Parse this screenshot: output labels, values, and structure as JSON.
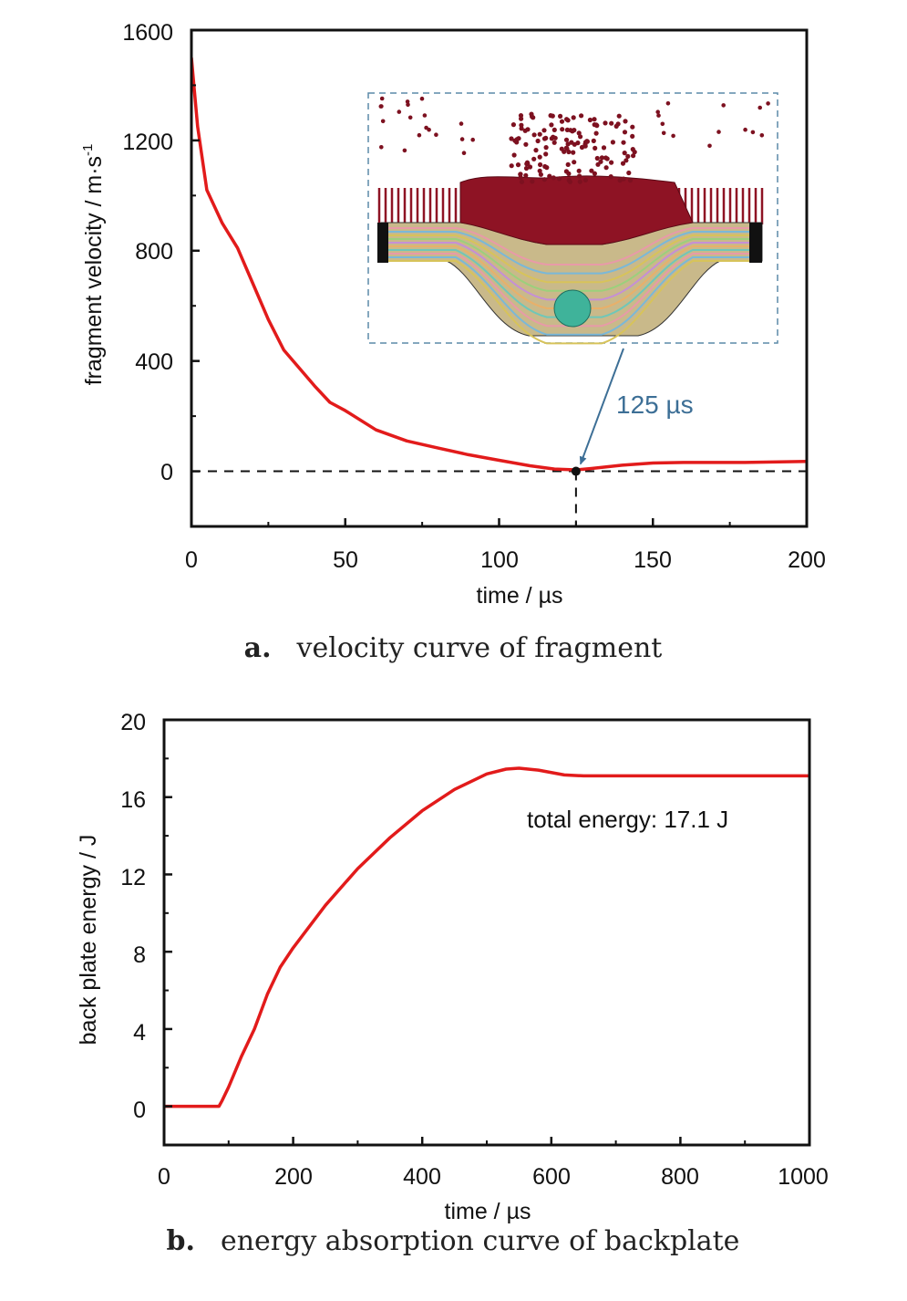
{
  "colors": {
    "curve": "#e21b1b",
    "axis": "#111111",
    "annotation": "#3d6f96",
    "inset_frame": "#5c8aa8"
  },
  "chart_data": [
    {
      "type": "line",
      "xlabel": "time / µs",
      "ylabel": "fragment velocity / m·s",
      "ylabel_sup": "-1",
      "xlim": [
        0,
        200
      ],
      "ylim": [
        -200,
        1600
      ],
      "xticks": [
        "0",
        "50",
        "100",
        "150",
        "200"
      ],
      "yticks": [
        "0",
        "400",
        "800",
        "1200",
        "1600"
      ],
      "caption_letter": "a.",
      "caption": "velocity curve of fragment",
      "annotation": {
        "text": "125 µs",
        "x": 125,
        "y": 0
      },
      "reference_line_y": 0,
      "inset": "simulation snapshot of fragment penetrating layered armor",
      "x": [
        0,
        2,
        5,
        10,
        15,
        20,
        25,
        30,
        40,
        45,
        50,
        60,
        70,
        80,
        90,
        100,
        110,
        118,
        125,
        130,
        140,
        150,
        160,
        180,
        200
      ],
      "y": [
        1500,
        1250,
        1020,
        900,
        810,
        680,
        550,
        440,
        310,
        250,
        220,
        150,
        110,
        85,
        60,
        40,
        20,
        8,
        5,
        10,
        22,
        30,
        32,
        32,
        36
      ]
    },
    {
      "type": "line",
      "xlabel": "time / µs",
      "ylabel": "back plate energy / J",
      "xlim": [
        0,
        1000
      ],
      "ylim": [
        -2,
        20
      ],
      "xticks": [
        "0",
        "200",
        "400",
        "600",
        "800",
        "1000"
      ],
      "yticks": [
        "0",
        "4",
        "8",
        "12",
        "16",
        "20"
      ],
      "caption_letter": "b.",
      "caption": "energy absorption curve of backplate",
      "annotation": {
        "text": "total energy: 17.1 J"
      },
      "x": [
        0,
        85,
        90,
        100,
        120,
        140,
        160,
        180,
        200,
        250,
        300,
        350,
        400,
        450,
        500,
        530,
        550,
        580,
        620,
        650,
        700,
        800,
        900,
        1000
      ],
      "y": [
        0,
        0,
        0.3,
        1.0,
        2.6,
        4.0,
        5.8,
        7.2,
        8.2,
        10.4,
        12.3,
        13.9,
        15.3,
        16.4,
        17.2,
        17.45,
        17.5,
        17.4,
        17.15,
        17.1,
        17.1,
        17.1,
        17.1,
        17.1
      ]
    }
  ]
}
